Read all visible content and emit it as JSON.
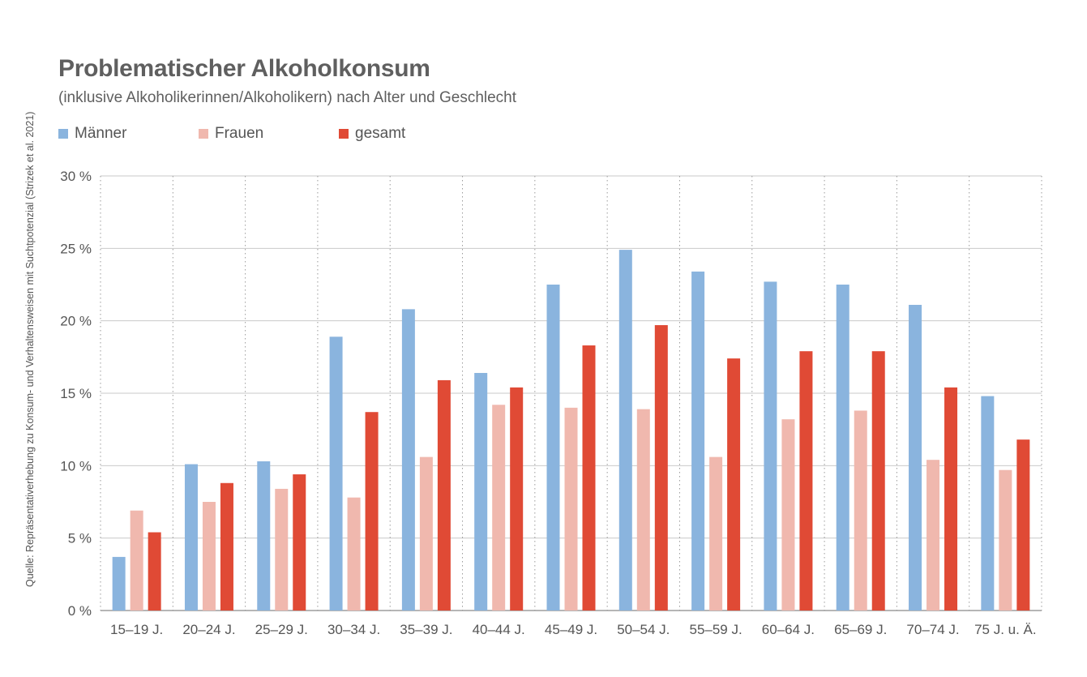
{
  "chart_data": {
    "type": "bar",
    "title": "Problematischer Alkoholkonsum",
    "subtitle": "(inklusive Alkoholikerinnen/Alkoholikern) nach Alter und Geschlecht",
    "source": "Quelle: Repräsentativerhebung zu Konsum- und Verhaltensweisen mit Suchtpotenzial (Strizek et al. 2021)",
    "xlabel": "",
    "ylabel": "",
    "ylim": [
      0,
      30
    ],
    "yticks": [
      0,
      5,
      10,
      15,
      20,
      25,
      30
    ],
    "ytick_labels": [
      "0 %",
      "5 %",
      "10 %",
      "15 %",
      "20 %",
      "25 %",
      "30 %"
    ],
    "grid": true,
    "legend_position": "top-left",
    "categories": [
      "15–19 J.",
      "20–24 J.",
      "25–29 J.",
      "30–34 J.",
      "35–39 J.",
      "40–44 J.",
      "45–49 J.",
      "50–54 J.",
      "55–59 J.",
      "60–64 J.",
      "65–69 J.",
      "70–74 J.",
      "75 J. u. Ä."
    ],
    "series": [
      {
        "name": "Männer",
        "color": "#8ab4de",
        "values": [
          3.7,
          10.1,
          10.3,
          18.9,
          20.8,
          16.4,
          22.5,
          24.9,
          23.4,
          22.7,
          22.5,
          21.1,
          14.8
        ]
      },
      {
        "name": "Frauen",
        "color": "#f0b8ae",
        "values": [
          6.9,
          7.5,
          8.4,
          7.8,
          10.6,
          14.2,
          14.0,
          13.9,
          10.6,
          13.2,
          13.8,
          10.4,
          9.7
        ]
      },
      {
        "name": "gesamt",
        "color": "#e04a35",
        "values": [
          5.4,
          8.8,
          9.4,
          13.7,
          15.9,
          15.4,
          18.3,
          19.7,
          17.4,
          17.9,
          17.9,
          15.4,
          11.8
        ]
      }
    ]
  }
}
